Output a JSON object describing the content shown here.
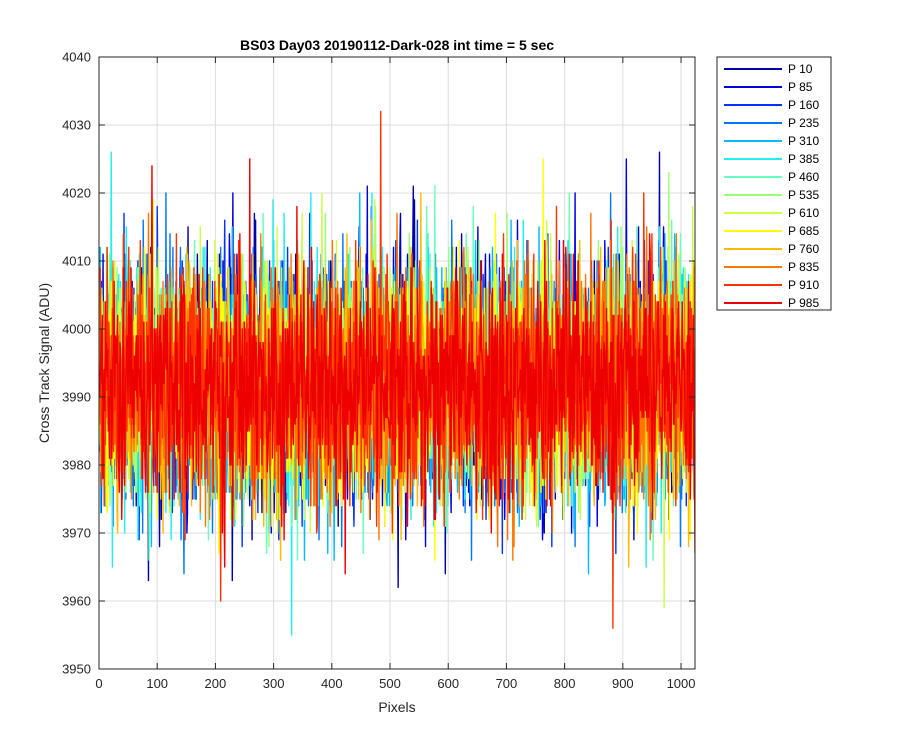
{
  "chart_data": {
    "type": "line",
    "title": "BS03 Day03 20190112-Dark-028 int time = 5 sec",
    "xlabel": "Pixels",
    "ylabel": "Cross Track Signal (ADU)",
    "xlim": [
      0,
      1024
    ],
    "ylim": [
      3950,
      4040
    ],
    "xticks": [
      "0",
      "100",
      "200",
      "300",
      "400",
      "500",
      "600",
      "700",
      "800",
      "900",
      "1000"
    ],
    "yticks": [
      "3950",
      "3960",
      "3970",
      "3980",
      "3990",
      "4000",
      "4010",
      "4020",
      "4030",
      "4040"
    ],
    "grid": true,
    "legend_position": "outside-top-right",
    "series": [
      {
        "name": "P 10",
        "color": "#0000AA",
        "mean": 3992,
        "sd": 8.5,
        "seed": 11
      },
      {
        "name": "P 85",
        "color": "#0000DD",
        "mean": 3992,
        "sd": 8.5,
        "seed": 23
      },
      {
        "name": "P 160",
        "color": "#0033FF",
        "mean": 3992,
        "sd": 8.5,
        "seed": 37
      },
      {
        "name": "P 235",
        "color": "#0077FF",
        "mean": 3992,
        "sd": 8.5,
        "seed": 41
      },
      {
        "name": "P 310",
        "color": "#00BBFF",
        "mean": 3992,
        "sd": 8.5,
        "seed": 53
      },
      {
        "name": "P 385",
        "color": "#22EEEE",
        "mean": 3992,
        "sd": 8.5,
        "seed": 67
      },
      {
        "name": "P 460",
        "color": "#66FFBB",
        "mean": 3992,
        "sd": 8.5,
        "seed": 71
      },
      {
        "name": "P 535",
        "color": "#99FF77",
        "mean": 3992,
        "sd": 8.5,
        "seed": 83
      },
      {
        "name": "P 610",
        "color": "#CCFF44",
        "mean": 3992,
        "sd": 8.5,
        "seed": 97
      },
      {
        "name": "P 685",
        "color": "#FFFF00",
        "mean": 3992,
        "sd": 8.5,
        "seed": 101
      },
      {
        "name": "P 760",
        "color": "#FFBB00",
        "mean": 3992,
        "sd": 8.5,
        "seed": 113
      },
      {
        "name": "P 835",
        "color": "#FF7700",
        "mean": 3992,
        "sd": 8.5,
        "seed": 127
      },
      {
        "name": "P 910",
        "color": "#FF3300",
        "mean": 3992,
        "sd": 8.5,
        "seed": 131
      },
      {
        "name": "P 985",
        "color": "#EE0000",
        "mean": 3992,
        "sd": 8.5,
        "seed": 139
      }
    ],
    "n_pixels": 1024,
    "peaks": [
      {
        "series": "P 385",
        "x": 20,
        "y": 4026
      },
      {
        "series": "P 385",
        "x": 22,
        "y": 3965
      },
      {
        "series": "P 10",
        "x": 84,
        "y": 3963
      },
      {
        "series": "P 985",
        "x": 90,
        "y": 4024
      },
      {
        "series": "P 910",
        "x": 208,
        "y": 3960
      },
      {
        "series": "P 985",
        "x": 258,
        "y": 4025
      },
      {
        "series": "P 385",
        "x": 330,
        "y": 3955
      },
      {
        "series": "P 910",
        "x": 483,
        "y": 4032
      },
      {
        "series": "P 685",
        "x": 762,
        "y": 4025
      },
      {
        "series": "P 910",
        "x": 882,
        "y": 3956
      },
      {
        "series": "P 85",
        "x": 905,
        "y": 4025
      },
      {
        "series": "P 10",
        "x": 962,
        "y": 4026
      },
      {
        "series": "P 610",
        "x": 970,
        "y": 3959
      },
      {
        "series": "P 535",
        "x": 978,
        "y": 4023
      },
      {
        "series": "P 10",
        "x": 513,
        "y": 3962
      },
      {
        "series": "P 10",
        "x": 228,
        "y": 3963
      }
    ]
  }
}
